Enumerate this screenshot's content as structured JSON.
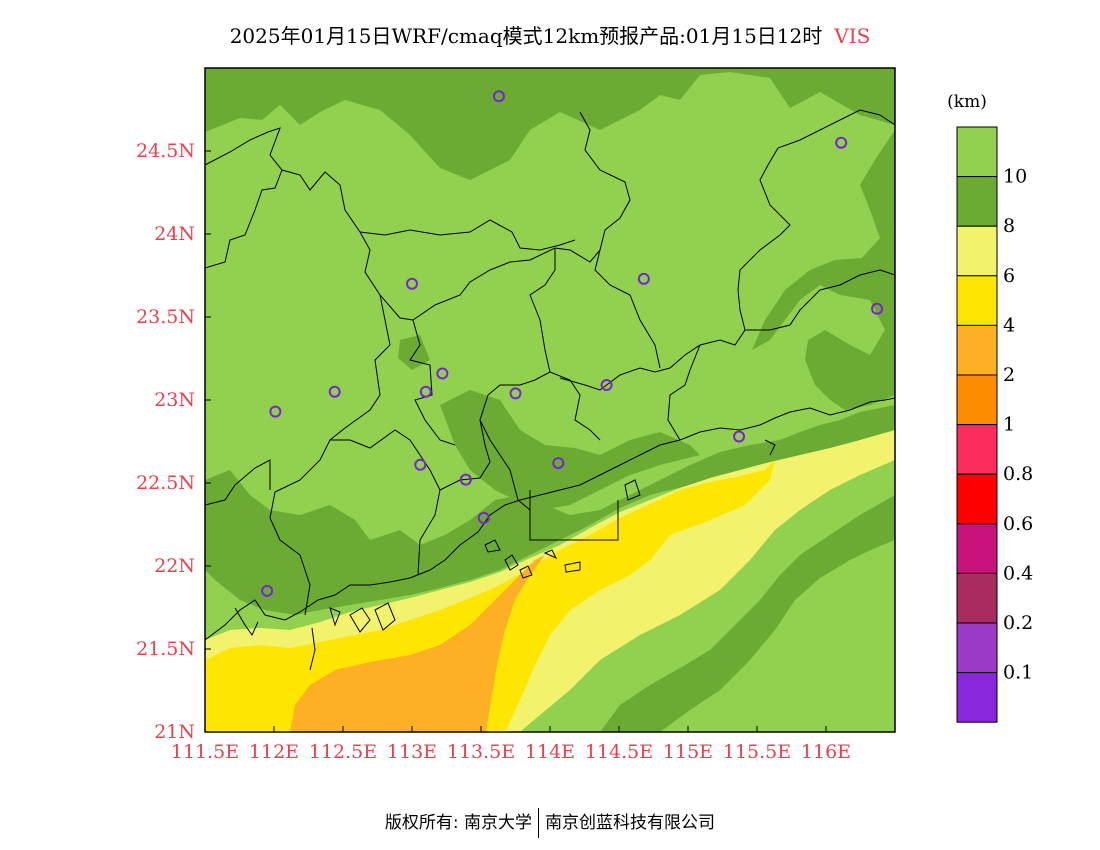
{
  "title": {
    "text": "2025年01月15日WRF/cmaq模式12km预报产品:01月15日12时",
    "variable": "VIS"
  },
  "map": {
    "lon_range": [
      111.5,
      116.5
    ],
    "lat_range": [
      21.0,
      25.0
    ],
    "lon_ticks": [
      {
        "value": 111.5,
        "label": "111.5E"
      },
      {
        "value": 112.0,
        "label": "112E"
      },
      {
        "value": 112.5,
        "label": "112.5E"
      },
      {
        "value": 113.0,
        "label": "113E"
      },
      {
        "value": 113.5,
        "label": "113.5E"
      },
      {
        "value": 114.0,
        "label": "114E"
      },
      {
        "value": 114.5,
        "label": "114.5E"
      },
      {
        "value": 115.0,
        "label": "115E"
      },
      {
        "value": 115.5,
        "label": "115.5E"
      },
      {
        "value": 116.0,
        "label": "116E"
      }
    ],
    "lat_ticks": [
      {
        "value": 21.0,
        "label": "21N"
      },
      {
        "value": 21.5,
        "label": "21.5N"
      },
      {
        "value": 22.0,
        "label": "22N"
      },
      {
        "value": 22.5,
        "label": "22.5N"
      },
      {
        "value": 23.0,
        "label": "23N"
      },
      {
        "value": 23.5,
        "label": "23.5N"
      },
      {
        "value": 24.0,
        "label": "24N"
      },
      {
        "value": 24.5,
        "label": "24.5N"
      }
    ],
    "stations": [
      {
        "lon": 113.63,
        "lat": 24.83
      },
      {
        "lon": 116.11,
        "lat": 24.55
      },
      {
        "lon": 113.0,
        "lat": 23.7
      },
      {
        "lon": 114.68,
        "lat": 23.73
      },
      {
        "lon": 116.37,
        "lat": 23.55
      },
      {
        "lon": 113.22,
        "lat": 23.16
      },
      {
        "lon": 112.44,
        "lat": 23.05
      },
      {
        "lon": 113.1,
        "lat": 23.05
      },
      {
        "lon": 113.75,
        "lat": 23.04
      },
      {
        "lon": 114.41,
        "lat": 23.09
      },
      {
        "lon": 112.01,
        "lat": 22.93
      },
      {
        "lon": 115.37,
        "lat": 22.78
      },
      {
        "lon": 113.06,
        "lat": 22.61
      },
      {
        "lon": 114.06,
        "lat": 22.62
      },
      {
        "lon": 113.39,
        "lat": 22.52
      },
      {
        "lon": 113.52,
        "lat": 22.29
      },
      {
        "lon": 111.95,
        "lat": 21.85
      }
    ],
    "colors": {
      "c10": "#92d050",
      "c8": "#6bab34",
      "c6": "#f2f26c",
      "c4": "#ffe600",
      "c2": "#fdb025",
      "c1": "#fe8c00"
    }
  },
  "legend": {
    "unit": "(km)",
    "bins": [
      {
        "color": "#92d050",
        "label": "10"
      },
      {
        "color": "#6bab34",
        "label": "8"
      },
      {
        "color": "#f2f26c",
        "label": "6"
      },
      {
        "color": "#ffe600",
        "label": "4"
      },
      {
        "color": "#fdb025",
        "label": "2"
      },
      {
        "color": "#fe8c00",
        "label": "1"
      },
      {
        "color": "#fc2c5c",
        "label": "0.8"
      },
      {
        "color": "#fe0000",
        "label": "0.6"
      },
      {
        "color": "#c8127c",
        "label": "0.4"
      },
      {
        "color": "#a82c5e",
        "label": "0.2"
      },
      {
        "color": "#9c3ac8",
        "label": "0.1"
      },
      {
        "color": "#8a26dc",
        "label": ""
      }
    ]
  },
  "footer": {
    "left": "版权所有: 南京大学",
    "right": "南京创蓝科技有限公司"
  }
}
